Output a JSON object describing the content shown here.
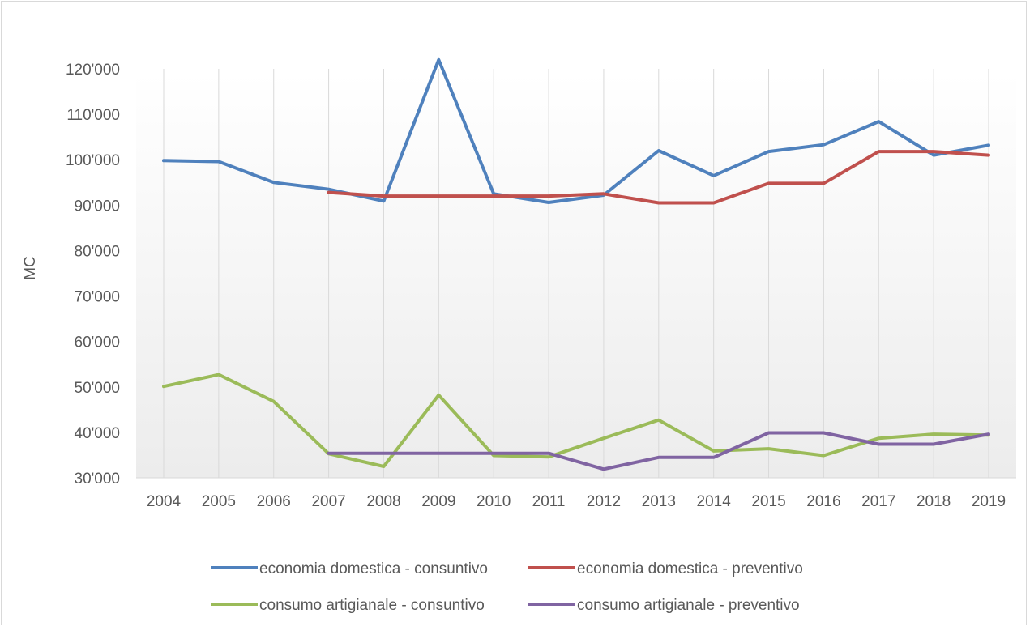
{
  "chart_data": {
    "type": "line",
    "title": "",
    "xlabel": "",
    "ylabel": "MC",
    "ylim": [
      30000,
      120000
    ],
    "ytick_step": 10000,
    "ytick_labels": [
      "30'000",
      "40'000",
      "50'000",
      "60'000",
      "70'000",
      "80'000",
      "90'000",
      "100'000",
      "110'000",
      "120'000"
    ],
    "categories": [
      "2004",
      "2005",
      "2006",
      "2007",
      "2008",
      "2009",
      "2010",
      "2011",
      "2012",
      "2013",
      "2014",
      "2015",
      "2016",
      "2017",
      "2018",
      "2019"
    ],
    "grid": "vertical",
    "legend_position": "bottom",
    "series": [
      {
        "name": "economia domestica - consuntivo",
        "color": "#4f81bd",
        "values": [
          99800,
          99600,
          95000,
          93500,
          90900,
          122000,
          92500,
          90600,
          92200,
          102000,
          96500,
          101800,
          103300,
          108400,
          101000,
          103200
        ]
      },
      {
        "name": "economia domestica - preventivo",
        "color": "#c0504d",
        "values": [
          null,
          null,
          null,
          92800,
          92000,
          92000,
          92000,
          92000,
          92500,
          90500,
          90500,
          94800,
          94800,
          101800,
          101800,
          101000
        ]
      },
      {
        "name": "consumo artigianale - consuntivo",
        "color": "#9bbb59",
        "values": [
          50100,
          52700,
          46800,
          35300,
          32500,
          48200,
          34900,
          34600,
          38700,
          42700,
          35900,
          36400,
          34900,
          38700,
          39600,
          39400
        ]
      },
      {
        "name": "consumo artigianale - preventivo",
        "color": "#8064a2",
        "values": [
          null,
          null,
          null,
          35400,
          35400,
          35400,
          35400,
          35400,
          31900,
          34500,
          34500,
          39900,
          39900,
          37400,
          37400,
          39600
        ]
      }
    ]
  }
}
